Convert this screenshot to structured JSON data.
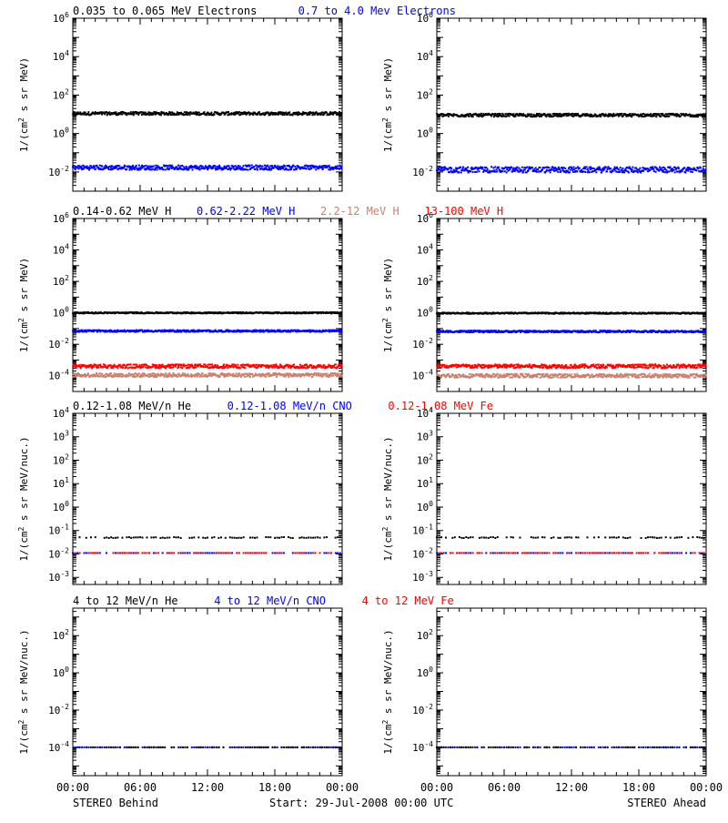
{
  "colors": {
    "black": "#000000",
    "blue": "#0000ff",
    "brown": "#c8826e",
    "red": "#ff0000"
  },
  "common": {
    "x_ticks": [
      "00:00",
      "06:00",
      "12:00",
      "18:00",
      "00:00"
    ],
    "footer_left": "STEREO Behind",
    "footer_center": "Start: 29-Jul-2008 00:00 UTC",
    "footer_right": "STEREO Ahead"
  },
  "chart_data": [
    {
      "type": "scatter",
      "row": 1,
      "spacecraft": "STEREO Behind",
      "title_parts": [
        {
          "text": "0.035 to 0.065 MeV Electrons",
          "color": "black"
        },
        {
          "text": "0.7 to 4.0 Mev Electrons",
          "color": "blue"
        }
      ],
      "ylabel": "1/(cm2 s sr MeV)",
      "yscale": "log",
      "ylim": [
        0.001,
        1000000
      ],
      "yticks": [
        [
          -2,
          "10-2"
        ],
        [
          0,
          "100"
        ],
        [
          2,
          "102"
        ],
        [
          4,
          "104"
        ],
        [
          6,
          "106"
        ]
      ],
      "x_hours": [
        0,
        24
      ],
      "series": [
        {
          "color": "black",
          "y": 11,
          "spread": 0.08
        },
        {
          "color": "blue",
          "y": 0.017,
          "spread": 0.12
        }
      ]
    },
    {
      "type": "scatter",
      "row": 1,
      "spacecraft": "STEREO Ahead",
      "ylabel": "1/(cm2 s sr MeV)",
      "yscale": "log",
      "ylim": [
        0.001,
        1000000
      ],
      "yticks": [
        [
          -2,
          "10-2"
        ],
        [
          0,
          "100"
        ],
        [
          2,
          "102"
        ],
        [
          4,
          "104"
        ],
        [
          6,
          "106"
        ]
      ],
      "x_hours": [
        0,
        24
      ],
      "series": [
        {
          "color": "black",
          "y": 9,
          "spread": 0.08
        },
        {
          "color": "blue",
          "y": 0.013,
          "spread": 0.15
        }
      ]
    },
    {
      "type": "scatter",
      "row": 2,
      "spacecraft": "STEREO Behind",
      "title_parts": [
        {
          "text": "0.14-0.62 MeV H",
          "color": "black"
        },
        {
          "text": "0.62-2.22 MeV H",
          "color": "blue"
        },
        {
          "text": "2.2-12 MeV H",
          "color": "brown"
        },
        {
          "text": "13-100 MeV H",
          "color": "red"
        }
      ],
      "ylabel": "1/(cm2 s sr MeV)",
      "yscale": "log",
      "ylim": [
        1e-05,
        1000000
      ],
      "yticks": [
        [
          -4,
          "10-4"
        ],
        [
          -2,
          "10-2"
        ],
        [
          0,
          "100"
        ],
        [
          2,
          "102"
        ],
        [
          4,
          "104"
        ],
        [
          6,
          "106"
        ]
      ],
      "x_hours": [
        0,
        24
      ],
      "series": [
        {
          "color": "black",
          "y": 1.0,
          "spread": 0.04
        },
        {
          "color": "blue",
          "y": 0.07,
          "spread": 0.06
        },
        {
          "color": "red",
          "y": 0.0004,
          "spread": 0.12
        },
        {
          "color": "brown",
          "y": 0.00011,
          "spread": 0.12
        }
      ]
    },
    {
      "type": "scatter",
      "row": 2,
      "spacecraft": "STEREO Ahead",
      "ylabel": "1/(cm2 s sr MeV)",
      "yscale": "log",
      "ylim": [
        1e-05,
        1000000
      ],
      "yticks": [
        [
          -4,
          "10-4"
        ],
        [
          -2,
          "10-2"
        ],
        [
          0,
          "100"
        ],
        [
          2,
          "102"
        ],
        [
          4,
          "104"
        ],
        [
          6,
          "106"
        ]
      ],
      "x_hours": [
        0,
        24
      ],
      "series": [
        {
          "color": "black",
          "y": 0.95,
          "spread": 0.04
        },
        {
          "color": "blue",
          "y": 0.065,
          "spread": 0.06
        },
        {
          "color": "red",
          "y": 0.0004,
          "spread": 0.12
        },
        {
          "color": "brown",
          "y": 0.0001,
          "spread": 0.12
        }
      ]
    },
    {
      "type": "scatter",
      "row": 3,
      "spacecraft": "STEREO Behind",
      "title_parts": [
        {
          "text": "0.12-1.08 MeV/n He",
          "color": "black"
        },
        {
          "text": "0.12-1.08 MeV/n CNO",
          "color": "blue"
        },
        {
          "text": "0.12-1.08 MeV Fe",
          "color": "red"
        }
      ],
      "ylabel": "1/(cm2 s sr MeV/nuc.)",
      "yscale": "log",
      "ylim": [
        0.0005,
        10000
      ],
      "yticks": [
        [
          -3,
          "10-3"
        ],
        [
          -2,
          "10-2"
        ],
        [
          -1,
          "10-1"
        ],
        [
          0,
          "100"
        ],
        [
          1,
          "101"
        ],
        [
          2,
          "102"
        ],
        [
          3,
          "103"
        ],
        [
          4,
          "104"
        ]
      ],
      "x_hours": [
        0,
        24
      ],
      "series": [
        {
          "color": "black",
          "y": 0.05,
          "spread": 0.02,
          "sparse": true
        },
        {
          "color": "blue",
          "y": 0.011,
          "spread": 0.0,
          "sparse": true
        },
        {
          "color": "red",
          "y": 0.011,
          "spread": 0.0,
          "sparse": true
        }
      ]
    },
    {
      "type": "scatter",
      "row": 3,
      "spacecraft": "STEREO Ahead",
      "ylabel": "1/(cm2 s sr MeV/nuc.)",
      "yscale": "log",
      "ylim": [
        0.0005,
        10000
      ],
      "yticks": [
        [
          -3,
          "10-3"
        ],
        [
          -2,
          "10-2"
        ],
        [
          -1,
          "10-1"
        ],
        [
          0,
          "100"
        ],
        [
          1,
          "101"
        ],
        [
          2,
          "102"
        ],
        [
          3,
          "103"
        ],
        [
          4,
          "104"
        ]
      ],
      "x_hours": [
        0,
        24
      ],
      "series": [
        {
          "color": "black",
          "y": 0.05,
          "spread": 0.02,
          "sparse": true
        },
        {
          "color": "blue",
          "y": 0.011,
          "spread": 0.0,
          "sparse": true
        },
        {
          "color": "red",
          "y": 0.011,
          "spread": 0.0,
          "sparse": true
        }
      ]
    },
    {
      "type": "scatter",
      "row": 4,
      "spacecraft": "STEREO Behind",
      "title_parts": [
        {
          "text": "4 to 12 MeV/n He",
          "color": "black"
        },
        {
          "text": "4 to 12 MeV/n CNO",
          "color": "blue"
        },
        {
          "text": "4 to 12 MeV Fe",
          "color": "red"
        }
      ],
      "ylabel": "1/(cm2 s sr MeV/nuc.)",
      "yscale": "log",
      "ylim": [
        3e-06,
        3000
      ],
      "yticks": [
        [
          -4,
          "10-4"
        ],
        [
          -2,
          "10-2"
        ],
        [
          0,
          "100"
        ],
        [
          2,
          "102"
        ]
      ],
      "x_hours": [
        0,
        24
      ],
      "series": [
        {
          "color": "blue",
          "y": 0.0001,
          "spread": 0.0,
          "sparse": true
        },
        {
          "color": "black",
          "y": 0.0001,
          "spread": 0.0,
          "sparse": true
        }
      ]
    },
    {
      "type": "scatter",
      "row": 4,
      "spacecraft": "STEREO Ahead",
      "ylabel": "1/(cm2 s sr MeV/nuc.)",
      "yscale": "log",
      "ylim": [
        3e-06,
        3000
      ],
      "yticks": [
        [
          -4,
          "10-4"
        ],
        [
          -2,
          "10-2"
        ],
        [
          0,
          "100"
        ],
        [
          2,
          "102"
        ]
      ],
      "x_hours": [
        0,
        24
      ],
      "series": [
        {
          "color": "blue",
          "y": 0.0001,
          "spread": 0.0,
          "sparse": true
        },
        {
          "color": "black",
          "y": 0.0001,
          "spread": 0.0,
          "sparse": true
        }
      ]
    }
  ]
}
